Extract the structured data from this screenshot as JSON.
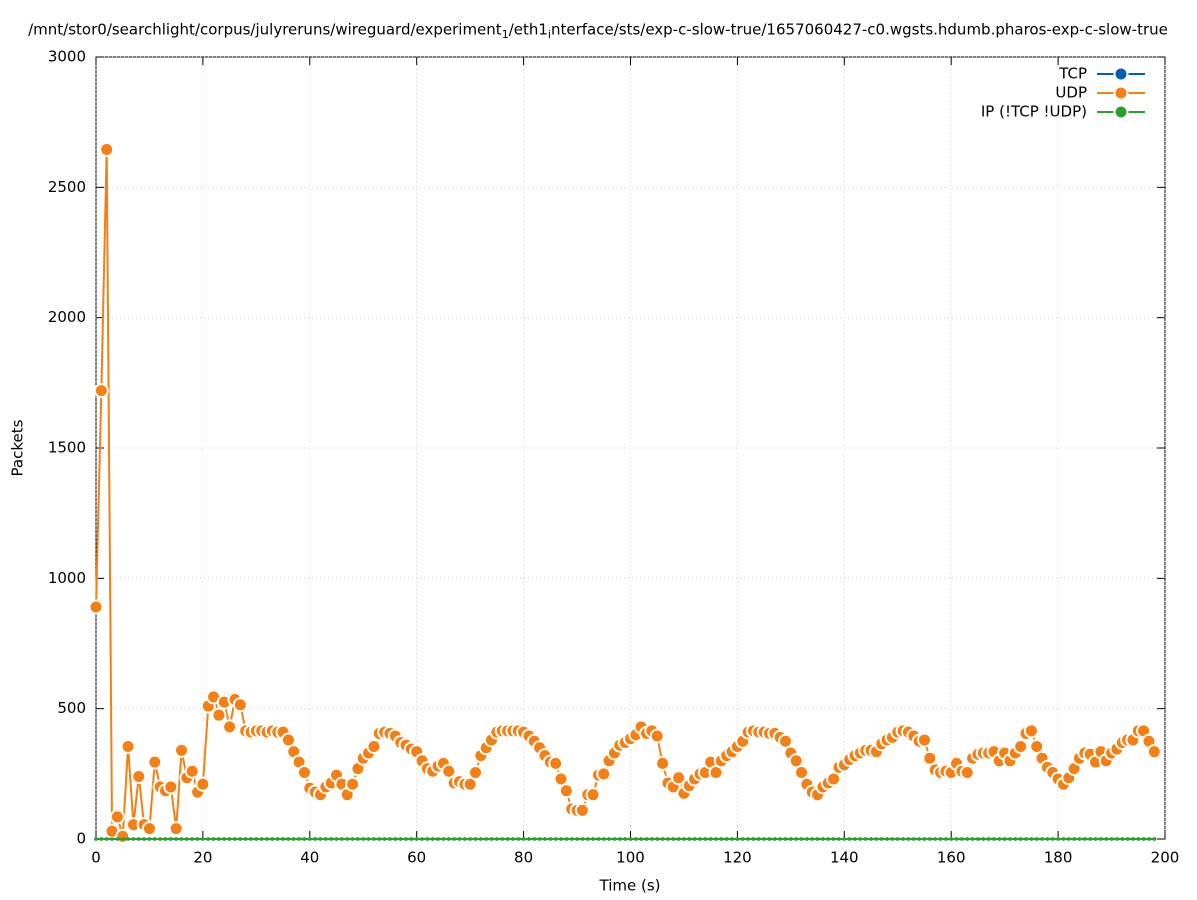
{
  "chart_data": {
    "type": "line",
    "title": "/mnt/stor0/searchlight/corpus/julyreruns/wireguard/experiment_1/eth1_interface/sts/exp-c-slow-true/1657060427-c0.wgsts.hdumb.pharos-exp-c-slow-true",
    "x_label": "Time (s)",
    "y_label": "Packets",
    "xlim": [
      0,
      200
    ],
    "ylim": [
      0,
      3000
    ],
    "xticks": [
      0,
      20,
      40,
      60,
      80,
      100,
      120,
      140,
      160,
      180,
      200
    ],
    "yticks": [
      0,
      500,
      1000,
      1500,
      2000,
      2500,
      3000
    ],
    "grid": true,
    "legend": "top-right",
    "x": [
      0,
      1,
      2,
      3,
      4,
      5,
      6,
      7,
      8,
      9,
      10,
      11,
      12,
      13,
      14,
      15,
      16,
      17,
      18,
      19,
      20,
      21,
      22,
      23,
      24,
      25,
      26,
      27,
      28,
      29,
      30,
      31,
      32,
      33,
      34,
      35,
      36,
      37,
      38,
      39,
      40,
      41,
      42,
      43,
      44,
      45,
      46,
      47,
      48,
      49,
      50,
      51,
      52,
      53,
      54,
      55,
      56,
      57,
      58,
      59,
      60,
      61,
      62,
      63,
      64,
      65,
      66,
      67,
      68,
      69,
      70,
      71,
      72,
      73,
      74,
      75,
      76,
      77,
      78,
      79,
      80,
      81,
      82,
      83,
      84,
      85,
      86,
      87,
      88,
      89,
      90,
      91,
      92,
      93,
      94,
      95,
      96,
      97,
      98,
      99,
      100,
      101,
      102,
      103,
      104,
      105,
      106,
      107,
      108,
      109,
      110,
      111,
      112,
      113,
      114,
      115,
      116,
      117,
      118,
      119,
      120,
      121,
      122,
      123,
      124,
      125,
      126,
      127,
      128,
      129,
      130,
      131,
      132,
      133,
      134,
      135,
      136,
      137,
      138,
      139,
      140,
      141,
      142,
      143,
      144,
      145,
      146,
      147,
      148,
      149,
      150,
      151,
      152,
      153,
      154,
      155,
      156,
      157,
      158,
      159,
      160,
      161,
      162,
      163,
      164,
      165,
      166,
      167,
      168,
      169,
      170,
      171,
      172,
      173,
      174,
      175,
      176,
      177,
      178,
      179,
      180,
      181,
      182,
      183,
      184,
      185,
      186,
      187,
      188,
      189,
      190,
      191,
      192,
      193,
      194,
      195,
      196,
      197,
      198
    ],
    "series": [
      {
        "name": "TCP",
        "color": "#0060ad",
        "values": [
          0,
          0,
          0,
          0,
          0,
          0,
          0,
          0,
          0,
          0,
          0,
          0,
          0,
          0,
          0,
          0,
          0,
          0,
          0,
          0,
          0,
          0,
          0,
          0,
          0,
          0,
          0,
          0,
          0,
          0,
          0,
          0,
          0,
          0,
          0,
          0,
          0,
          0,
          0,
          0,
          0,
          0,
          0,
          0,
          0,
          0,
          0,
          0,
          0,
          0,
          0,
          0,
          0,
          0,
          0,
          0,
          0,
          0,
          0,
          0,
          0,
          0,
          0,
          0,
          0,
          0,
          0,
          0,
          0,
          0,
          0,
          0,
          0,
          0,
          0,
          0,
          0,
          0,
          0,
          0,
          0,
          0,
          0,
          0,
          0,
          0,
          0,
          0,
          0,
          0,
          0,
          0,
          0,
          0,
          0,
          0,
          0,
          0,
          0,
          0,
          0,
          0,
          0,
          0,
          0,
          0,
          0,
          0,
          0,
          0,
          0,
          0,
          0,
          0,
          0,
          0,
          0,
          0,
          0,
          0,
          0,
          0,
          0,
          0,
          0,
          0,
          0,
          0,
          0,
          0,
          0,
          0,
          0,
          0,
          0,
          0,
          0,
          0,
          0,
          0,
          0,
          0,
          0,
          0,
          0,
          0,
          0,
          0,
          0,
          0,
          0,
          0,
          0,
          0,
          0,
          0,
          0,
          0,
          0,
          0,
          0,
          0,
          0,
          0,
          0,
          0,
          0,
          0,
          0,
          0,
          0,
          0,
          0,
          0,
          0,
          0,
          0,
          0,
          0,
          0,
          0,
          0,
          0,
          0,
          0,
          0,
          0,
          0,
          0,
          0,
          0,
          0,
          0,
          0,
          0,
          0,
          0,
          0,
          0
        ]
      },
      {
        "name": "UDP",
        "color": "#f57f12",
        "values": [
          890,
          1720,
          2645,
          30,
          85,
          10,
          355,
          55,
          240,
          55,
          40,
          295,
          200,
          185,
          200,
          40,
          340,
          235,
          260,
          180,
          210,
          510,
          545,
          475,
          525,
          430,
          535,
          515,
          415,
          410,
          415,
          415,
          410,
          415,
          410,
          410,
          380,
          335,
          295,
          255,
          195,
          180,
          170,
          200,
          215,
          245,
          210,
          170,
          210,
          270,
          310,
          330,
          355,
          405,
          410,
          405,
          395,
          370,
          360,
          345,
          335,
          300,
          270,
          260,
          280,
          290,
          260,
          215,
          220,
          210,
          210,
          255,
          320,
          350,
          380,
          410,
          415,
          415,
          415,
          415,
          410,
          395,
          375,
          350,
          320,
          295,
          290,
          230,
          185,
          115,
          110,
          110,
          170,
          170,
          245,
          250,
          300,
          330,
          360,
          370,
          385,
          400,
          430,
          405,
          415,
          395,
          290,
          215,
          200,
          235,
          175,
          205,
          230,
          250,
          255,
          295,
          255,
          300,
          320,
          335,
          355,
          375,
          410,
          415,
          410,
          410,
          405,
          405,
          390,
          375,
          330,
          300,
          255,
          210,
          180,
          170,
          200,
          215,
          230,
          275,
          285,
          305,
          320,
          330,
          340,
          340,
          335,
          365,
          380,
          390,
          410,
          415,
          410,
          395,
          375,
          380,
          310,
          265,
          255,
          260,
          255,
          290,
          260,
          255,
          310,
          325,
          330,
          330,
          335,
          300,
          330,
          300,
          330,
          355,
          405,
          415,
          355,
          310,
          275,
          255,
          230,
          210,
          235,
          270,
          310,
          330,
          325,
          295,
          335,
          300,
          330,
          345,
          370,
          380,
          380,
          415,
          415,
          375,
          335
        ]
      },
      {
        "name": "IP (!TCP  !UDP)",
        "color": "#2ca02c",
        "values": [
          0,
          0,
          0,
          0,
          0,
          0,
          0,
          0,
          0,
          0,
          0,
          0,
          0,
          0,
          0,
          0,
          0,
          0,
          0,
          0,
          0,
          0,
          0,
          0,
          0,
          0,
          0,
          0,
          0,
          0,
          0,
          0,
          0,
          0,
          0,
          0,
          0,
          0,
          0,
          0,
          0,
          0,
          0,
          0,
          0,
          0,
          0,
          0,
          0,
          0,
          0,
          0,
          0,
          0,
          0,
          0,
          0,
          0,
          0,
          0,
          0,
          0,
          0,
          0,
          0,
          0,
          0,
          0,
          0,
          0,
          0,
          0,
          0,
          0,
          0,
          0,
          0,
          0,
          0,
          0,
          0,
          0,
          0,
          0,
          0,
          0,
          0,
          0,
          0,
          0,
          0,
          0,
          0,
          0,
          0,
          0,
          0,
          0,
          0,
          0,
          0,
          0,
          0,
          0,
          0,
          0,
          0,
          0,
          0,
          0,
          0,
          0,
          0,
          0,
          0,
          0,
          0,
          0,
          0,
          0,
          0,
          0,
          0,
          0,
          0,
          0,
          0,
          0,
          0,
          0,
          0,
          0,
          0,
          0,
          0,
          0,
          0,
          0,
          0,
          0,
          0,
          0,
          0,
          0,
          0,
          0,
          0,
          0,
          0,
          0,
          0,
          0,
          0,
          0,
          0,
          0,
          0,
          0,
          0,
          0,
          0,
          0,
          0,
          0,
          0,
          0,
          0,
          0,
          0,
          0,
          0,
          0,
          0,
          0,
          0,
          0,
          0,
          0,
          0,
          0,
          0,
          0,
          0,
          0,
          0,
          0,
          0,
          0,
          0,
          0,
          0,
          0,
          0,
          0,
          0,
          0,
          0,
          0,
          0
        ]
      }
    ]
  }
}
